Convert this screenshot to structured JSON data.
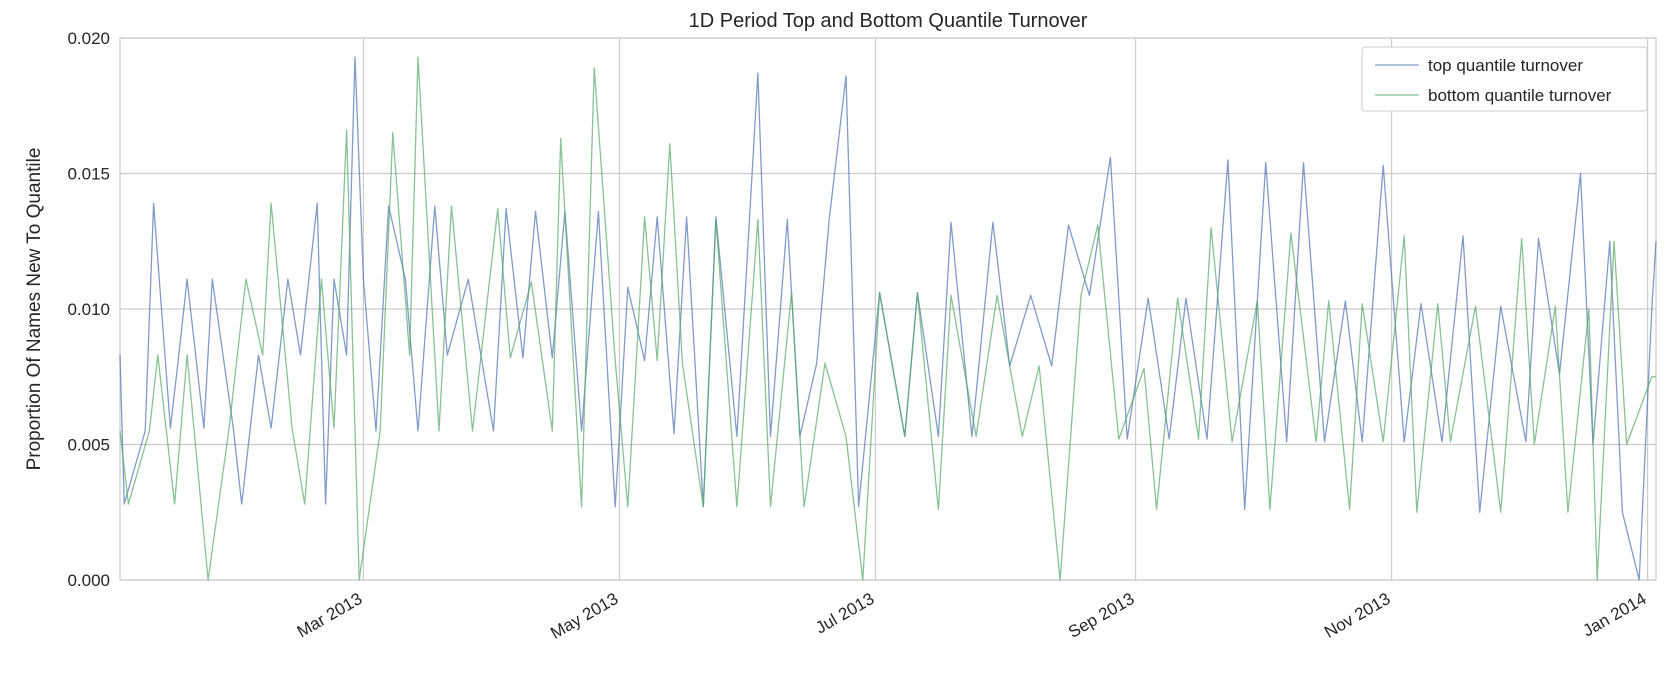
{
  "chart_data": {
    "type": "line",
    "title": "1D Period Top and Bottom Quantile Turnover",
    "xlabel": "",
    "ylabel": "Proportion Of Names New To Quantile",
    "x_range": [
      "2013-01-02",
      "2014-01-03"
    ],
    "ylim": [
      0,
      0.02
    ],
    "yticks": [
      0.0,
      0.005,
      0.01,
      0.015,
      0.02
    ],
    "ytick_labels": [
      "0.000",
      "0.005",
      "0.010",
      "0.015",
      "0.020"
    ],
    "xticks": [
      "2013-03-01",
      "2013-05-01",
      "2013-07-01",
      "2013-09-01",
      "2013-11-01",
      "2014-01-01"
    ],
    "xtick_labels": [
      "Mar 2013",
      "May 2013",
      "Jul 2013",
      "Sep 2013",
      "Nov 2013",
      "Jan 2014"
    ],
    "grid": true,
    "legend_position": "top-right",
    "series": [
      {
        "name": "top quantile turnover",
        "color": "#4c72b0",
        "points": [
          [
            "2013-01-02",
            0.0083
          ],
          [
            "2013-01-03",
            0.0028
          ],
          [
            "2013-01-08",
            0.0055
          ],
          [
            "2013-01-10",
            0.0139
          ],
          [
            "2013-01-14",
            0.0056
          ],
          [
            "2013-01-16",
            0.0083
          ],
          [
            "2013-01-18",
            0.0111
          ],
          [
            "2013-01-22",
            0.0056
          ],
          [
            "2013-01-24",
            0.0111
          ],
          [
            "2013-01-29",
            0.0056
          ],
          [
            "2013-01-31",
            0.0028
          ],
          [
            "2013-02-04",
            0.0083
          ],
          [
            "2013-02-07",
            0.0056
          ],
          [
            "2013-02-11",
            0.0111
          ],
          [
            "2013-02-14",
            0.0083
          ],
          [
            "2013-02-18",
            0.0139
          ],
          [
            "2013-02-20",
            0.0028
          ],
          [
            "2013-02-22",
            0.0111
          ],
          [
            "2013-02-25",
            0.0083
          ],
          [
            "2013-02-27",
            0.0193
          ],
          [
            "2013-03-01",
            0.0111
          ],
          [
            "2013-03-04",
            0.0055
          ],
          [
            "2013-03-07",
            0.0138
          ],
          [
            "2013-03-11",
            0.0111
          ],
          [
            "2013-03-14",
            0.0055
          ],
          [
            "2013-03-18",
            0.0138
          ],
          [
            "2013-03-21",
            0.0083
          ],
          [
            "2013-03-26",
            0.0111
          ],
          [
            "2013-04-01",
            0.0055
          ],
          [
            "2013-04-04",
            0.0137
          ],
          [
            "2013-04-08",
            0.0082
          ],
          [
            "2013-04-11",
            0.0136
          ],
          [
            "2013-04-15",
            0.0082
          ],
          [
            "2013-04-18",
            0.0136
          ],
          [
            "2013-04-22",
            0.0055
          ],
          [
            "2013-04-26",
            0.0136
          ],
          [
            "2013-04-30",
            0.0027
          ],
          [
            "2013-05-03",
            0.0108
          ],
          [
            "2013-05-07",
            0.0081
          ],
          [
            "2013-05-10",
            0.0134
          ],
          [
            "2013-05-14",
            0.0054
          ],
          [
            "2013-05-17",
            0.0134
          ],
          [
            "2013-05-21",
            0.0027
          ],
          [
            "2013-05-24",
            0.0134
          ],
          [
            "2013-05-29",
            0.0053
          ],
          [
            "2013-06-03",
            0.0187
          ],
          [
            "2013-06-06",
            0.0053
          ],
          [
            "2013-06-10",
            0.0133
          ],
          [
            "2013-06-13",
            0.0053
          ],
          [
            "2013-06-17",
            0.008
          ],
          [
            "2013-06-20",
            0.0133
          ],
          [
            "2013-06-24",
            0.0186
          ],
          [
            "2013-06-27",
            0.0027
          ],
          [
            "2013-07-02",
            0.0106
          ],
          [
            "2013-07-08",
            0.0053
          ],
          [
            "2013-07-11",
            0.0106
          ],
          [
            "2013-07-16",
            0.0053
          ],
          [
            "2013-07-19",
            0.0132
          ],
          [
            "2013-07-24",
            0.0053
          ],
          [
            "2013-07-29",
            0.0132
          ],
          [
            "2013-08-02",
            0.0079
          ],
          [
            "2013-08-07",
            0.0105
          ],
          [
            "2013-08-12",
            0.0079
          ],
          [
            "2013-08-16",
            0.0131
          ],
          [
            "2013-08-21",
            0.0105
          ],
          [
            "2013-08-26",
            0.0156
          ],
          [
            "2013-08-30",
            0.0052
          ],
          [
            "2013-09-04",
            0.0104
          ],
          [
            "2013-09-09",
            0.0052
          ],
          [
            "2013-09-13",
            0.0104
          ],
          [
            "2013-09-18",
            0.0052
          ],
          [
            "2013-09-23",
            0.0155
          ],
          [
            "2013-09-27",
            0.0026
          ],
          [
            "2013-10-02",
            0.0154
          ],
          [
            "2013-10-07",
            0.0051
          ],
          [
            "2013-10-11",
            0.0154
          ],
          [
            "2013-10-16",
            0.0051
          ],
          [
            "2013-10-21",
            0.0103
          ],
          [
            "2013-10-25",
            0.0051
          ],
          [
            "2013-10-30",
            0.0153
          ],
          [
            "2013-11-04",
            0.0051
          ],
          [
            "2013-11-08",
            0.0102
          ],
          [
            "2013-11-13",
            0.0051
          ],
          [
            "2013-11-18",
            0.0127
          ],
          [
            "2013-11-22",
            0.0025
          ],
          [
            "2013-11-27",
            0.0101
          ],
          [
            "2013-12-03",
            0.0051
          ],
          [
            "2013-12-06",
            0.0126
          ],
          [
            "2013-12-11",
            0.0076
          ],
          [
            "2013-12-16",
            0.015
          ],
          [
            "2013-12-19",
            0.005
          ],
          [
            "2013-12-23",
            0.0125
          ],
          [
            "2013-12-26",
            0.0025
          ],
          [
            "2013-12-30",
            0.0
          ],
          [
            "2014-01-02",
            0.01
          ],
          [
            "2014-01-03",
            0.0125
          ]
        ]
      },
      {
        "name": "bottom quantile turnover",
        "color": "#55a868",
        "points": [
          [
            "2013-01-02",
            0.0055
          ],
          [
            "2013-01-04",
            0.0028
          ],
          [
            "2013-01-09",
            0.0055
          ],
          [
            "2013-01-11",
            0.0083
          ],
          [
            "2013-01-15",
            0.0028
          ],
          [
            "2013-01-18",
            0.0083
          ],
          [
            "2013-01-23",
            0.0
          ],
          [
            "2013-01-28",
            0.0056
          ],
          [
            "2013-02-01",
            0.0111
          ],
          [
            "2013-02-05",
            0.0083
          ],
          [
            "2013-02-07",
            0.0139
          ],
          [
            "2013-02-12",
            0.0056
          ],
          [
            "2013-02-15",
            0.0028
          ],
          [
            "2013-02-19",
            0.0111
          ],
          [
            "2013-02-22",
            0.0056
          ],
          [
            "2013-02-25",
            0.0166
          ],
          [
            "2013-02-28",
            0.0
          ],
          [
            "2013-03-05",
            0.0055
          ],
          [
            "2013-03-08",
            0.0165
          ],
          [
            "2013-03-12",
            0.0083
          ],
          [
            "2013-03-14",
            0.0193
          ],
          [
            "2013-03-19",
            0.0055
          ],
          [
            "2013-03-22",
            0.0138
          ],
          [
            "2013-03-27",
            0.0055
          ],
          [
            "2013-04-02",
            0.0137
          ],
          [
            "2013-04-05",
            0.0082
          ],
          [
            "2013-04-10",
            0.011
          ],
          [
            "2013-04-15",
            0.0055
          ],
          [
            "2013-04-17",
            0.0163
          ],
          [
            "2013-04-22",
            0.0027
          ],
          [
            "2013-04-25",
            0.0189
          ],
          [
            "2013-04-30",
            0.0081
          ],
          [
            "2013-05-03",
            0.0027
          ],
          [
            "2013-05-07",
            0.0134
          ],
          [
            "2013-05-10",
            0.0081
          ],
          [
            "2013-05-13",
            0.0161
          ],
          [
            "2013-05-16",
            0.008
          ],
          [
            "2013-05-21",
            0.0027
          ],
          [
            "2013-05-24",
            0.0133
          ],
          [
            "2013-05-29",
            0.0027
          ],
          [
            "2013-06-03",
            0.0133
          ],
          [
            "2013-06-06",
            0.0027
          ],
          [
            "2013-06-11",
            0.0106
          ],
          [
            "2013-06-14",
            0.0027
          ],
          [
            "2013-06-19",
            0.008
          ],
          [
            "2013-06-24",
            0.0053
          ],
          [
            "2013-06-28",
            0.0
          ],
          [
            "2013-07-02",
            0.0106
          ],
          [
            "2013-07-08",
            0.0053
          ],
          [
            "2013-07-11",
            0.0106
          ],
          [
            "2013-07-16",
            0.0026
          ],
          [
            "2013-07-19",
            0.0105
          ],
          [
            "2013-07-25",
            0.0053
          ],
          [
            "2013-07-30",
            0.0105
          ],
          [
            "2013-08-05",
            0.0053
          ],
          [
            "2013-08-09",
            0.0079
          ],
          [
            "2013-08-14",
            0.0
          ],
          [
            "2013-08-19",
            0.0105
          ],
          [
            "2013-08-23",
            0.0131
          ],
          [
            "2013-08-28",
            0.0052
          ],
          [
            "2013-09-03",
            0.0078
          ],
          [
            "2013-09-06",
            0.0026
          ],
          [
            "2013-09-11",
            0.0104
          ],
          [
            "2013-09-16",
            0.0052
          ],
          [
            "2013-09-19",
            0.013
          ],
          [
            "2013-09-24",
            0.0051
          ],
          [
            "2013-09-30",
            0.0103
          ],
          [
            "2013-10-03",
            0.0026
          ],
          [
            "2013-10-08",
            0.0128
          ],
          [
            "2013-10-14",
            0.0051
          ],
          [
            "2013-10-17",
            0.0103
          ],
          [
            "2013-10-22",
            0.0026
          ],
          [
            "2013-10-25",
            0.0102
          ],
          [
            "2013-10-30",
            0.0051
          ],
          [
            "2013-11-04",
            0.0127
          ],
          [
            "2013-11-07",
            0.0025
          ],
          [
            "2013-11-12",
            0.0102
          ],
          [
            "2013-11-15",
            0.0051
          ],
          [
            "2013-11-21",
            0.0101
          ],
          [
            "2013-11-27",
            0.0025
          ],
          [
            "2013-12-02",
            0.0126
          ],
          [
            "2013-12-05",
            0.005
          ],
          [
            "2013-12-10",
            0.0101
          ],
          [
            "2013-12-13",
            0.0025
          ],
          [
            "2013-12-18",
            0.01
          ],
          [
            "2013-12-20",
            0.0
          ],
          [
            "2013-12-24",
            0.0125
          ],
          [
            "2013-12-27",
            0.005
          ],
          [
            "2014-01-02",
            0.0075
          ],
          [
            "2014-01-03",
            0.0075
          ]
        ]
      }
    ]
  }
}
